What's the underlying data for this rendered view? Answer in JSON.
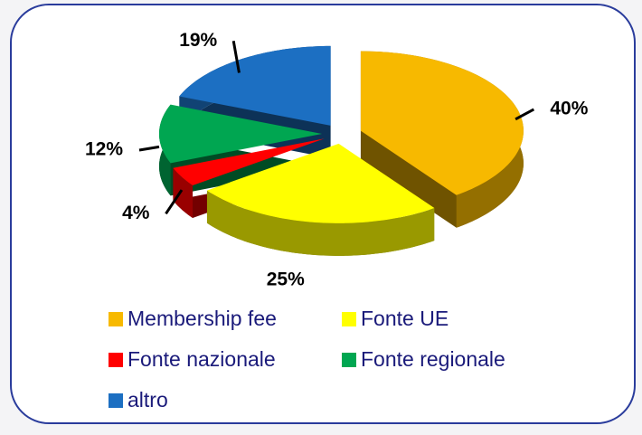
{
  "chart_data": {
    "type": "pie3d",
    "categories": [
      "Membership fee",
      "Fonte UE",
      "Fonte nazionale",
      "Fonte regionale",
      "altro"
    ],
    "values": [
      40,
      25,
      4,
      12,
      19
    ],
    "value_labels": [
      "40%",
      "25%",
      "4%",
      "12%",
      "19%"
    ],
    "colors": [
      "#f7b900",
      "#ffff00",
      "#ff0000",
      "#00a651",
      "#1c6fc2"
    ],
    "legend": "bottom"
  }
}
